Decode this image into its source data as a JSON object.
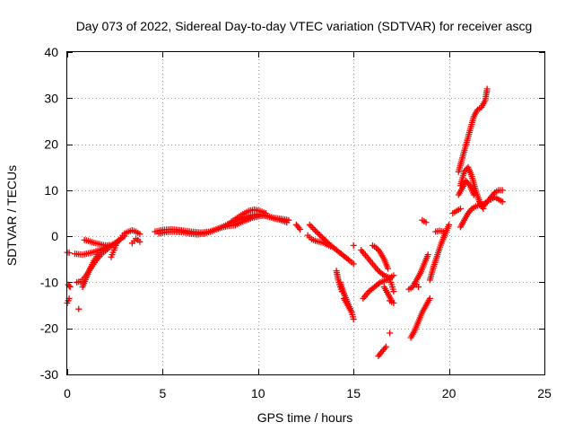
{
  "chart_data": {
    "type": "scatter",
    "title": "Day 073 of 2022, Sidereal Day-to-day VTEC variation (SDTVAR) for receiver ascg",
    "xlabel": "GPS time / hours",
    "ylabel": "SDTVAR / TECUs",
    "xlim": [
      0,
      25
    ],
    "ylim": [
      -30,
      40
    ],
    "xticks": [
      0,
      5,
      10,
      15,
      20,
      25
    ],
    "yticks": [
      -30,
      -20,
      -10,
      0,
      10,
      20,
      30,
      40
    ],
    "xtick_labels": [
      "0",
      "5",
      "10",
      "15",
      "20",
      "25"
    ],
    "ytick_labels": [
      "-30",
      "-20",
      "-10",
      "0",
      "10",
      "20",
      "30",
      "40"
    ],
    "grid": true,
    "marker": "plus",
    "color": "#ff0000",
    "segments": [
      {
        "name": "a1",
        "x": [
          0.0,
          0.05,
          0.1
        ],
        "y": [
          -14.5,
          -14.0,
          -13.5
        ]
      },
      {
        "name": "a2",
        "x": [
          0.0,
          0.1
        ],
        "y": [
          -3.5,
          -3.6
        ]
      },
      {
        "name": "a3",
        "x": [
          0.05,
          0.1,
          0.15
        ],
        "y": [
          -10.5,
          -10.8,
          -11.0
        ]
      },
      {
        "name": "a4",
        "x": [
          0.6
        ],
        "y": [
          -15.8
        ]
      },
      {
        "name": "a5",
        "x": [
          0.4,
          0.6,
          0.8,
          1.0,
          1.2,
          1.4,
          1.6,
          1.8,
          2.0,
          2.2
        ],
        "y": [
          -3.8,
          -3.9,
          -4.0,
          -3.8,
          -3.6,
          -3.4,
          -3.1,
          -2.8,
          -2.4,
          -1.9
        ]
      },
      {
        "name": "a6",
        "x": [
          0.5,
          0.7,
          0.9,
          1.1,
          1.3,
          1.5,
          1.7,
          1.9,
          2.1,
          2.3,
          2.5
        ],
        "y": [
          -10.0,
          -9.8,
          -9.0,
          -7.8,
          -6.5,
          -5.3,
          -4.3,
          -3.5,
          -2.8,
          -2.1,
          -1.5
        ]
      },
      {
        "name": "a7",
        "x": [
          0.8,
          1.0,
          1.2,
          1.4,
          1.6,
          1.8,
          2.0,
          2.2,
          2.4,
          2.6,
          2.8,
          3.0
        ],
        "y": [
          -11.0,
          -9.0,
          -7.0,
          -5.3,
          -4.0,
          -3.2,
          -2.6,
          -2.2,
          -1.7,
          -1.2,
          -0.6,
          0.0
        ]
      },
      {
        "name": "a8",
        "x": [
          0.9,
          1.1,
          1.3,
          1.5,
          1.7,
          1.9,
          2.1
        ],
        "y": [
          -0.8,
          -1.0,
          -1.3,
          -1.5,
          -1.7,
          -1.9,
          -2.0
        ]
      },
      {
        "name": "a9",
        "x": [
          2.3,
          2.4,
          2.5,
          2.6,
          2.7,
          2.8
        ],
        "y": [
          -4.5,
          -3.5,
          -2.5,
          -1.5,
          -0.8,
          -0.5
        ]
      },
      {
        "name": "a10",
        "x": [
          2.9,
          3.0,
          3.2,
          3.4,
          3.6,
          3.8
        ],
        "y": [
          0.2,
          0.6,
          1.0,
          1.3,
          1.0,
          0.5
        ]
      },
      {
        "name": "a11",
        "x": [
          3.4,
          3.5,
          3.6,
          3.7,
          3.8
        ],
        "y": [
          -1.5,
          -1.0,
          -0.5,
          -0.8,
          -1.2
        ]
      },
      {
        "name": "b1",
        "x": [
          4.6,
          5.0,
          5.5,
          6.0,
          6.5,
          7.0,
          7.5,
          8.0,
          8.5,
          9.0,
          9.4
        ],
        "y": [
          1.0,
          1.4,
          1.5,
          1.3,
          1.0,
          0.8,
          1.0,
          1.8,
          2.8,
          3.6,
          4.2
        ]
      },
      {
        "name": "b2",
        "x": [
          4.8,
          5.2,
          5.6,
          6.0,
          6.4,
          6.8,
          7.2,
          7.6,
          8.0,
          8.4,
          8.8
        ],
        "y": [
          0.6,
          0.9,
          1.0,
          0.9,
          0.6,
          0.4,
          0.6,
          1.2,
          1.8,
          2.2,
          2.4
        ]
      },
      {
        "name": "c1",
        "x": [
          8.6,
          8.9,
          9.2,
          9.5,
          9.8,
          10.1,
          10.4
        ],
        "y": [
          3.2,
          4.0,
          4.8,
          5.5,
          5.8,
          5.5,
          5.0
        ]
      },
      {
        "name": "c2",
        "x": [
          8.8,
          9.1,
          9.4,
          9.7,
          10.0,
          10.3,
          10.6,
          10.9,
          11.2,
          11.5
        ],
        "y": [
          2.5,
          3.0,
          3.5,
          4.0,
          4.3,
          4.5,
          4.2,
          3.8,
          3.5,
          3.0
        ]
      },
      {
        "name": "c3",
        "x": [
          9.2,
          9.6,
          10.0,
          10.4,
          10.8,
          11.2,
          11.6
        ],
        "y": [
          3.8,
          4.5,
          4.8,
          4.5,
          4.0,
          3.8,
          3.5
        ]
      },
      {
        "name": "d1",
        "x": [
          12.0,
          12.2
        ],
        "y": [
          2.5,
          1.5
        ]
      },
      {
        "name": "d2",
        "x": [
          12.7,
          13.0,
          13.3,
          13.6,
          13.9,
          14.2,
          14.5,
          14.8,
          15.0
        ],
        "y": [
          2.5,
          1.2,
          0.0,
          -1.2,
          -2.3,
          -3.3,
          -4.3,
          -5.3,
          -6.0
        ]
      },
      {
        "name": "d3",
        "x": [
          12.6,
          12.8,
          13.0,
          13.2,
          13.4,
          13.6,
          13.8
        ],
        "y": [
          0.2,
          -0.6,
          -1.0,
          -1.2,
          -1.4,
          -1.8,
          -2.2
        ]
      },
      {
        "name": "d4",
        "x": [
          14.1,
          14.2,
          14.3,
          14.4,
          14.5
        ],
        "y": [
          -7.5,
          -9.5,
          -11.0,
          -12.0,
          -12.5
        ]
      },
      {
        "name": "d5",
        "x": [
          14.3,
          14.5,
          14.7,
          14.9
        ],
        "y": [
          -10.0,
          -12.5,
          -14.5,
          -16.5
        ]
      },
      {
        "name": "d6",
        "x": [
          14.5,
          14.7,
          14.9,
          15.0
        ],
        "y": [
          -13.5,
          -15.0,
          -16.5,
          -18.0
        ]
      },
      {
        "name": "d7",
        "x": [
          15.0
        ],
        "y": [
          -2.0
        ]
      },
      {
        "name": "e1",
        "x": [
          15.4,
          15.7,
          16.0,
          16.3,
          16.6,
          16.9,
          17.1
        ],
        "y": [
          -3.0,
          -4.5,
          -6.0,
          -7.5,
          -8.5,
          -9.0,
          -8.5
        ]
      },
      {
        "name": "e2",
        "x": [
          15.5,
          15.8,
          16.1,
          16.4,
          16.7,
          16.9
        ],
        "y": [
          -13.5,
          -12.0,
          -11.0,
          -10.0,
          -9.5,
          -9.2
        ]
      },
      {
        "name": "e3",
        "x": [
          16.0,
          16.2,
          16.4,
          16.6,
          16.8
        ],
        "y": [
          -2.0,
          -2.5,
          -3.5,
          -5.0,
          -7.0
        ]
      },
      {
        "name": "e4",
        "x": [
          16.6,
          16.8,
          17.0
        ],
        "y": [
          -11.0,
          -12.5,
          -14.0
        ]
      },
      {
        "name": "e5",
        "x": [
          16.3,
          16.5,
          16.7
        ],
        "y": [
          -26.0,
          -25.0,
          -24.0
        ]
      },
      {
        "name": "e6",
        "x": [
          16.9
        ],
        "y": [
          -21.0
        ]
      },
      {
        "name": "e7",
        "x": [
          16.9,
          17.0,
          17.1
        ],
        "y": [
          -9.5,
          -10.5,
          -12.0
        ]
      },
      {
        "name": "e8",
        "x": [
          16.9,
          17.1
        ],
        "y": [
          -14.0,
          -14.5
        ]
      },
      {
        "name": "f1",
        "x": [
          17.9,
          18.1,
          18.3,
          18.5,
          18.7,
          18.9
        ],
        "y": [
          -11.5,
          -11.0,
          -9.5,
          -8.0,
          -6.0,
          -4.0
        ]
      },
      {
        "name": "f2",
        "x": [
          18.0,
          18.2,
          18.4,
          18.6,
          18.8,
          19.0
        ],
        "y": [
          -22.0,
          -20.5,
          -18.5,
          -16.5,
          -15.0,
          -13.5
        ]
      },
      {
        "name": "f3",
        "x": [
          18.3,
          18.4
        ],
        "y": [
          -10.5,
          -11.0
        ]
      },
      {
        "name": "f4",
        "x": [
          18.6,
          18.8
        ],
        "y": [
          3.5,
          3.0
        ]
      },
      {
        "name": "f5",
        "x": [
          19.0,
          19.2,
          19.4,
          19.6,
          19.8,
          20.0
        ],
        "y": [
          -9.5,
          -6.5,
          -4.0,
          -1.5,
          0.5,
          2.5
        ]
      },
      {
        "name": "f6",
        "x": [
          19.3,
          19.5,
          19.7
        ],
        "y": [
          1.0,
          1.2,
          1.0
        ]
      },
      {
        "name": "g1",
        "x": [
          20.2,
          20.4,
          20.6
        ],
        "y": [
          5.0,
          5.5,
          6.0
        ]
      },
      {
        "name": "g2",
        "x": [
          20.5,
          20.7,
          20.9,
          21.1,
          21.3,
          21.5,
          21.7,
          21.9,
          22.0
        ],
        "y": [
          14.0,
          17.0,
          20.0,
          23.0,
          26.0,
          27.5,
          28.0,
          29.5,
          32.0
        ]
      },
      {
        "name": "g3",
        "x": [
          20.6,
          20.8,
          21.0,
          21.2,
          21.4,
          21.6,
          21.8
        ],
        "y": [
          11.0,
          14.0,
          15.0,
          13.0,
          10.0,
          7.5,
          6.0
        ]
      },
      {
        "name": "g4",
        "x": [
          20.5,
          20.7,
          20.9,
          21.1,
          21.3
        ],
        "y": [
          9.0,
          10.5,
          12.0,
          11.0,
          9.0
        ]
      },
      {
        "name": "g5",
        "x": [
          20.6,
          20.8,
          21.0,
          21.2,
          21.4,
          21.6,
          21.8,
          22.0
        ],
        "y": [
          2.0,
          3.5,
          5.0,
          6.0,
          6.5,
          6.8,
          7.0,
          7.5
        ]
      },
      {
        "name": "g6",
        "x": [
          21.8,
          22.0,
          22.2,
          22.4,
          22.6,
          22.8
        ],
        "y": [
          6.5,
          7.5,
          8.5,
          9.5,
          10.0,
          10.0
        ]
      },
      {
        "name": "g7",
        "x": [
          22.2,
          22.4,
          22.6,
          22.8
        ],
        "y": [
          8.0,
          8.5,
          8.0,
          7.5
        ]
      }
    ]
  }
}
